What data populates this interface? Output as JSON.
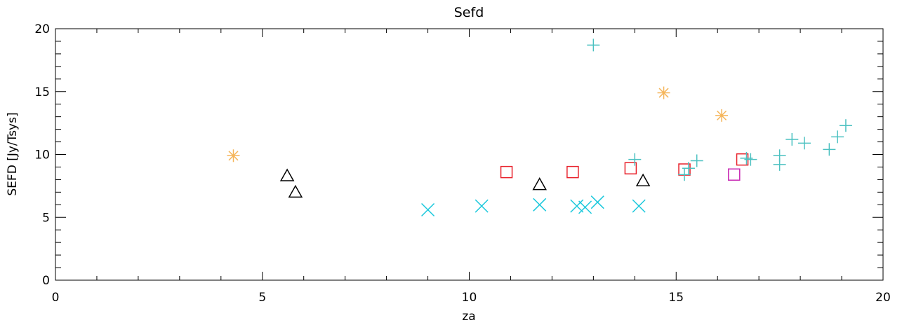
{
  "chart_data": {
    "type": "scatter",
    "title": "Sefd",
    "xlabel": "za",
    "ylabel": "SEFD [Jy/Tsys]",
    "xlim": [
      0,
      20
    ],
    "ylim": [
      0,
      20
    ],
    "x_major_ticks": [
      0,
      5,
      10,
      15,
      20
    ],
    "y_major_ticks": [
      0,
      5,
      10,
      15,
      20
    ],
    "grid": false,
    "series": [
      {
        "marker": "asterisk",
        "color": "#f5b55a",
        "points": [
          [
            4.3,
            9.9
          ],
          [
            14.7,
            14.9
          ],
          [
            16.1,
            13.1
          ]
        ]
      },
      {
        "marker": "triangle",
        "color": "#000000",
        "points": [
          [
            5.6,
            8.3
          ],
          [
            5.8,
            7.0
          ],
          [
            11.7,
            7.6
          ],
          [
            14.2,
            7.9
          ]
        ]
      },
      {
        "marker": "x",
        "color": "#19c8dc",
        "points": [
          [
            9.0,
            5.6
          ],
          [
            10.3,
            5.9
          ],
          [
            11.7,
            6.0
          ],
          [
            12.6,
            5.9
          ],
          [
            12.8,
            5.8
          ],
          [
            13.1,
            6.2
          ],
          [
            14.1,
            5.9
          ]
        ]
      },
      {
        "marker": "square",
        "color": "#e8202a",
        "points": [
          [
            10.9,
            8.6
          ],
          [
            12.5,
            8.6
          ],
          [
            13.9,
            8.9
          ],
          [
            15.2,
            8.8
          ],
          [
            16.6,
            9.6
          ]
        ]
      },
      {
        "marker": "square",
        "color": "#c82ab4",
        "points": [
          [
            16.4,
            8.4
          ]
        ]
      },
      {
        "marker": "plus",
        "color": "#4cc1c1",
        "points": [
          [
            13.0,
            18.7
          ],
          [
            14.0,
            9.6
          ],
          [
            15.2,
            8.4
          ],
          [
            15.3,
            8.9
          ],
          [
            15.5,
            9.5
          ],
          [
            16.7,
            9.7
          ],
          [
            16.8,
            9.6
          ],
          [
            17.5,
            9.2
          ],
          [
            17.5,
            9.9
          ],
          [
            17.8,
            11.2
          ],
          [
            18.1,
            10.9
          ],
          [
            18.7,
            10.4
          ],
          [
            18.9,
            11.4
          ],
          [
            19.1,
            12.3
          ]
        ]
      }
    ]
  }
}
